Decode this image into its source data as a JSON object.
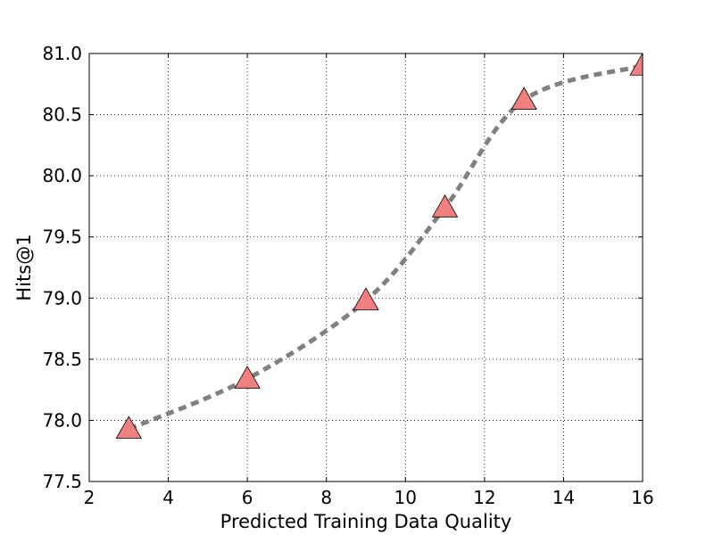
{
  "chart_data": {
    "type": "line",
    "title": "",
    "xlabel": "Predicted Training Data Quality",
    "ylabel": "Hits@1",
    "xlim": [
      2,
      16
    ],
    "ylim": [
      77.5,
      81.0
    ],
    "x_ticks": [
      2,
      4,
      6,
      8,
      10,
      12,
      14,
      16
    ],
    "y_ticks": [
      77.5,
      78.0,
      78.5,
      79.0,
      79.5,
      80.0,
      80.5,
      81.0
    ],
    "x_tick_labels": [
      "2",
      "4",
      "6",
      "8",
      "10",
      "12",
      "14",
      "16"
    ],
    "y_tick_labels": [
      "77.5",
      "78.0",
      "78.5",
      "79.0",
      "79.5",
      "80.0",
      "80.5",
      "81.0"
    ],
    "grid": true,
    "legend": "none",
    "series": [
      {
        "x": [
          3,
          6,
          9,
          11,
          13,
          16
        ],
        "y": [
          77.93,
          78.34,
          78.98,
          79.74,
          80.62,
          80.9
        ],
        "line_style": "dashed",
        "line_color": "#808080",
        "marker": "triangle",
        "marker_color": "#f08080"
      }
    ]
  }
}
